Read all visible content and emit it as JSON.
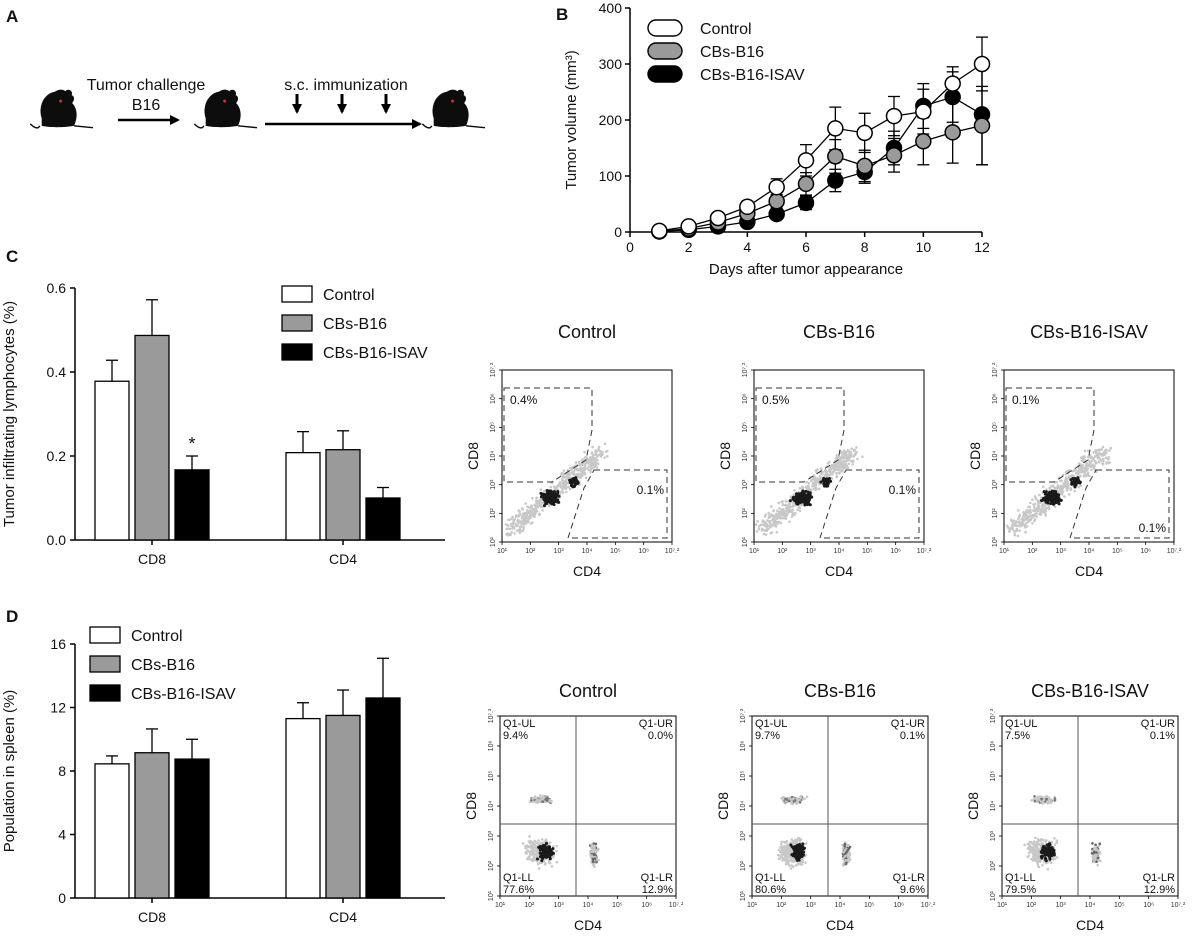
{
  "panels": {
    "a": "A",
    "b": "B",
    "c": "C",
    "d": "D"
  },
  "schematic": {
    "challenge_label": "Tumor challenge",
    "challenge_sub": "B16",
    "immunization_label": "s.c. immunization",
    "mouse_icon": "mouse-icon",
    "arrow_icon": "arrow-right-icon",
    "down_arrow_icon": "arrow-down-icon"
  },
  "colors": {
    "control": "#ffffff",
    "cbs_b16_b": "#9a9a9a",
    "cbs_b16_c": "#cfcfcf",
    "cbs_b16_d": "#cccccc",
    "cbs_b16_isav": "#000000",
    "cbs_b16_isav_c": "#555555",
    "flow_dot": "#c8c8c8",
    "flow_dense": "#1a1a1a"
  },
  "chart_data": [
    {
      "id": "B",
      "type": "line",
      "title": "",
      "xlabel": "Days after tumor appearance",
      "ylabel": "Tumor volume (mm³)",
      "xlim": [
        0,
        12
      ],
      "ylim": [
        0,
        400
      ],
      "xticks": [
        "0",
        "2",
        "4",
        "6",
        "8",
        "10",
        "12"
      ],
      "yticks": [
        "0",
        "100",
        "200",
        "300",
        "400"
      ],
      "x": [
        1,
        2,
        3,
        4,
        5,
        6,
        7,
        8,
        9,
        10,
        11,
        12
      ],
      "series": [
        {
          "name": "Control",
          "values": [
            2,
            10,
            25,
            45,
            80,
            128,
            185,
            177,
            207,
            215,
            265,
            300
          ],
          "errors": [
            2,
            4,
            6,
            10,
            15,
            28,
            38,
            35,
            35,
            40,
            30,
            48
          ]
        },
        {
          "name": "CBs-B16",
          "values": [
            1,
            6,
            17,
            33,
            55,
            86,
            135,
            118,
            137,
            162,
            178,
            190
          ],
          "errors": [
            1,
            3,
            5,
            8,
            12,
            20,
            30,
            28,
            30,
            42,
            55,
            70
          ]
        },
        {
          "name": "CBs-B16-ISAV",
          "values": [
            1,
            4,
            10,
            18,
            32,
            52,
            92,
            107,
            150,
            225,
            241,
            210
          ],
          "errors": [
            1,
            2,
            4,
            6,
            8,
            12,
            20,
            20,
            30,
            40,
            45,
            90
          ]
        }
      ]
    },
    {
      "id": "C",
      "type": "bar",
      "xlabel": "",
      "ylabel": "Tumor infiltrating lymphocytes (%)",
      "ylim": [
        0,
        0.6
      ],
      "yticks": [
        "0.0",
        "0.2",
        "0.4",
        "0.6"
      ],
      "categories": [
        "CD8",
        "CD4"
      ],
      "series": [
        {
          "name": "Control",
          "values": [
            0.378,
            0.208
          ],
          "errors": [
            0.05,
            0.05
          ]
        },
        {
          "name": "CBs-B16",
          "values": [
            0.487,
            0.215
          ],
          "errors": [
            0.085,
            0.045
          ]
        },
        {
          "name": "CBs-B16-ISAV",
          "values": [
            0.167,
            0.1
          ],
          "errors": [
            0.033,
            0.025
          ]
        }
      ],
      "annotation": "*"
    },
    {
      "id": "D",
      "type": "bar",
      "xlabel": "",
      "ylabel": "Population in spleen (%)",
      "ylim": [
        0,
        16
      ],
      "yticks": [
        "0",
        "4",
        "8",
        "12",
        "16"
      ],
      "categories": [
        "CD8",
        "CD4"
      ],
      "series": [
        {
          "name": "Control",
          "values": [
            8.45,
            11.3
          ],
          "errors": [
            0.5,
            1.0
          ]
        },
        {
          "name": "CBs-B16",
          "values": [
            9.15,
            11.5
          ],
          "errors": [
            1.5,
            1.6
          ]
        },
        {
          "name": "CBs-B16-ISAV",
          "values": [
            8.75,
            12.6
          ],
          "errors": [
            1.25,
            2.5
          ]
        }
      ]
    }
  ],
  "flow_c": {
    "xlabel": "CD4",
    "ylabel": "CD8",
    "plots": [
      {
        "title": "Control",
        "upper_pct": "0.4%",
        "lower_pct": "0.1%"
      },
      {
        "title": "CBs-B16",
        "upper_pct": "0.5%",
        "lower_pct": "0.1%"
      },
      {
        "title": "CBs-B16-ISAV",
        "upper_pct": "0.1%",
        "lower_pct": "0.1%"
      }
    ]
  },
  "flow_d": {
    "xlabel": "CD4",
    "ylabel": "CD8",
    "plots": [
      {
        "title": "Control",
        "ul_name": "Q1-UL",
        "ul": "9.4%",
        "ur_name": "Q1-UR",
        "ur": "0.0%",
        "ll_name": "Q1-LL",
        "ll": "77.6%",
        "lr_name": "Q1-LR",
        "lr": "12.9%"
      },
      {
        "title": "CBs-B16",
        "ul_name": "Q1-UL",
        "ul": "9.7%",
        "ur_name": "Q1-UR",
        "ur": "0.1%",
        "ll_name": "Q1-LL",
        "ll": "80.6%",
        "lr_name": "Q1-LR",
        "lr": "9.6%"
      },
      {
        "title": "CBs-B16-ISAV",
        "ul_name": "Q1-UL",
        "ul": "7.5%",
        "ur_name": "Q1-UR",
        "ur": "0.1%",
        "ll_name": "Q1-LL",
        "ll": "79.5%",
        "lr_name": "Q1-LR",
        "lr": "12.9%"
      }
    ]
  },
  "flow_ticks": {
    "x": [
      "10¹",
      "10²",
      "10³",
      "10⁴",
      "10⁵",
      "10⁶",
      "10⁷.²"
    ],
    "y": [
      "10¹",
      "10²",
      "10³",
      "10⁴",
      "10⁵",
      "10⁶",
      "10⁷.²"
    ]
  }
}
